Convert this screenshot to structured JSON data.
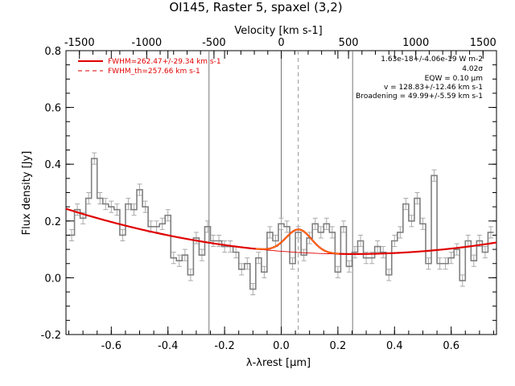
{
  "chart_data": {
    "type": "line",
    "title": "OI145, Raster 5, spaxel (3,2)",
    "xlabel": "λ-λrest [μm]",
    "ylabel": "Flux density [Jy]",
    "top_axis_label": "Velocity [km s-1]",
    "xlim": [
      -0.76,
      0.76
    ],
    "ylim": [
      -0.2,
      0.8
    ],
    "top_xlim": [
      -1600,
      1600
    ],
    "x_ticks": [
      "-0.6",
      "-0.4",
      "-0.2",
      "0.0",
      "0.2",
      "0.4",
      "0.6"
    ],
    "x_tick_values": [
      -0.6,
      -0.4,
      -0.2,
      0.0,
      0.2,
      0.4,
      0.6
    ],
    "y_ticks": [
      "-0.2",
      "0.0",
      "0.2",
      "0.4",
      "0.6",
      "0.8"
    ],
    "y_tick_values": [
      -0.2,
      0.0,
      0.2,
      0.4,
      0.6,
      0.8
    ],
    "top_ticks": [
      "-1500",
      "-1000",
      "-500",
      "0",
      "500",
      "1000",
      "1500"
    ],
    "top_tick_values": [
      -1500,
      -1000,
      -500,
      0,
      500,
      1000,
      1500
    ],
    "vertical_lines": [
      -0.255,
      0.0,
      0.252
    ],
    "dashed_line": 0.06,
    "legend": [
      {
        "label": "FWHM=262.47+/-29.34 km s-1",
        "style": "solid",
        "color": "#e00000"
      },
      {
        "label": "FWHM_th=257.66 km s-1",
        "style": "dashed",
        "color": "#e00000"
      }
    ],
    "annotations": [
      "1.63e-18+/-4.06e-19 W m-2",
      "4.02σ",
      "EQW = 0.10 μm",
      "v = 128.83+/-12.46 km s-1",
      "Broadening = 49.99+/-5.59 km s-1"
    ],
    "series": [
      {
        "name": "spectrum",
        "style": "step",
        "color": "#808080",
        "x": [
          -0.74,
          -0.72,
          -0.7,
          -0.68,
          -0.66,
          -0.64,
          -0.62,
          -0.6,
          -0.58,
          -0.56,
          -0.54,
          -0.52,
          -0.5,
          -0.48,
          -0.46,
          -0.44,
          -0.42,
          -0.4,
          -0.38,
          -0.36,
          -0.34,
          -0.32,
          -0.3,
          -0.28,
          -0.26,
          -0.24,
          -0.22,
          -0.2,
          -0.18,
          -0.16,
          -0.14,
          -0.12,
          -0.1,
          -0.08,
          -0.06,
          -0.04,
          -0.02,
          0.0,
          0.02,
          0.04,
          0.06,
          0.08,
          0.1,
          0.12,
          0.14,
          0.16,
          0.18,
          0.2,
          0.22,
          0.24,
          0.26,
          0.28,
          0.3,
          0.32,
          0.34,
          0.36,
          0.38,
          0.4,
          0.42,
          0.44,
          0.46,
          0.48,
          0.5,
          0.52,
          0.54,
          0.56,
          0.58,
          0.6,
          0.62,
          0.64,
          0.66,
          0.68,
          0.7,
          0.72,
          0.74
        ],
        "y": [
          0.15,
          0.24,
          0.21,
          0.28,
          0.42,
          0.28,
          0.26,
          0.25,
          0.24,
          0.15,
          0.26,
          0.24,
          0.31,
          0.25,
          0.18,
          0.18,
          0.19,
          0.22,
          0.07,
          0.06,
          0.08,
          0.01,
          0.14,
          0.08,
          0.18,
          0.13,
          0.13,
          0.11,
          0.11,
          0.09,
          0.03,
          0.05,
          -0.04,
          0.07,
          0.02,
          0.16,
          0.13,
          0.19,
          0.18,
          0.05,
          0.16,
          0.08,
          0.14,
          0.19,
          0.16,
          0.19,
          0.16,
          0.02,
          0.18,
          0.04,
          0.09,
          0.13,
          0.07,
          0.07,
          0.11,
          0.09,
          0.01,
          0.13,
          0.16,
          0.26,
          0.2,
          0.28,
          0.19,
          0.05,
          0.36,
          0.05,
          0.05,
          0.07,
          0.1,
          -0.01,
          0.13,
          0.06,
          0.13,
          0.09,
          0.16
        ],
        "err": 0.02
      },
      {
        "name": "continuum + line fit",
        "style": "thick",
        "color": "#e00000"
      },
      {
        "name": "continuum",
        "style": "thin",
        "color": "#e00000"
      }
    ]
  }
}
